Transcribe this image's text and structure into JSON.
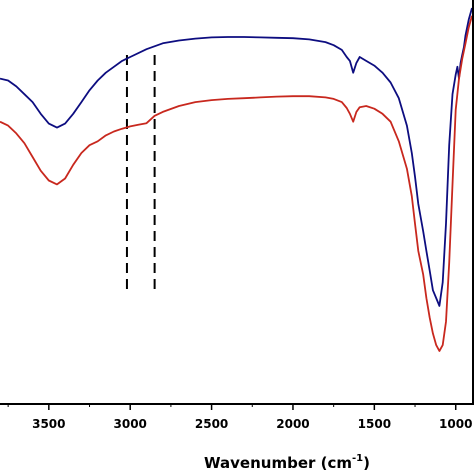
{
  "chart_data": {
    "type": "line",
    "xlabel": "Wavenumber (cm",
    "xlabel_sup": "-1",
    "xlabel_end": ")",
    "ylabel": "",
    "x_reversed": true,
    "xlim": [
      3800,
      900
    ],
    "ylim": [
      0,
      100
    ],
    "x_ticks": [
      3500,
      3000,
      2500,
      2000,
      1500,
      1000
    ],
    "x_tick_labels": [
      "3500",
      "3000",
      "2500",
      "2000",
      "1500",
      "1000"
    ],
    "grid": false,
    "legend": "none",
    "series": [
      {
        "color": "#0d0d80",
        "x": [
          3800,
          3750,
          3700,
          3650,
          3600,
          3550,
          3500,
          3450,
          3400,
          3350,
          3300,
          3250,
          3200,
          3150,
          3100,
          3050,
          3000,
          2900,
          2800,
          2700,
          2600,
          2500,
          2400,
          2300,
          2200,
          2100,
          2000,
          1900,
          1800,
          1750,
          1700,
          1670,
          1650,
          1630,
          1610,
          1590,
          1550,
          1500,
          1450,
          1400,
          1350,
          1300,
          1270,
          1250,
          1230,
          1200,
          1180,
          1160,
          1140,
          1120,
          1100,
          1080,
          1060,
          1040,
          1020,
          1000,
          990,
          980,
          970,
          960,
          950,
          940,
          920,
          900
        ],
        "y": [
          82,
          81.5,
          80,
          78,
          76,
          73,
          70.5,
          69.5,
          70.5,
          73,
          76,
          79,
          81.5,
          83.5,
          85,
          86.5,
          87.5,
          89.5,
          91,
          91.7,
          92.2,
          92.5,
          92.6,
          92.6,
          92.5,
          92.4,
          92.3,
          92,
          91.3,
          90.5,
          89.3,
          87.5,
          86.5,
          83.5,
          86,
          87.5,
          86.5,
          85.3,
          83.5,
          81,
          77,
          70,
          63,
          57,
          50,
          43,
          38,
          33,
          28,
          26,
          24,
          30,
          45,
          65,
          78,
          83,
          85,
          82,
          86,
          88,
          90,
          93,
          97,
          100
        ]
      },
      {
        "color": "#c8281e",
        "x": [
          3800,
          3750,
          3700,
          3650,
          3600,
          3550,
          3500,
          3450,
          3400,
          3350,
          3300,
          3250,
          3200,
          3150,
          3100,
          3050,
          3000,
          2950,
          2900,
          2850,
          2800,
          2700,
          2600,
          2500,
          2400,
          2300,
          2200,
          2100,
          2000,
          1900,
          1800,
          1750,
          1700,
          1670,
          1650,
          1630,
          1610,
          1590,
          1550,
          1500,
          1450,
          1400,
          1350,
          1300,
          1270,
          1250,
          1230,
          1200,
          1180,
          1160,
          1140,
          1120,
          1100,
          1080,
          1060,
          1040,
          1020,
          1000,
          980,
          960,
          940,
          920,
          900
        ],
        "y": [
          71,
          70,
          68,
          65.5,
          62,
          58.5,
          56,
          55,
          56.5,
          60,
          63,
          65,
          66,
          67.5,
          68.5,
          69.2,
          69.8,
          70.2,
          70.6,
          72.5,
          73.5,
          75,
          76,
          76.5,
          76.8,
          77,
          77.2,
          77.4,
          77.5,
          77.5,
          77.2,
          76.8,
          76,
          74.5,
          73,
          71,
          73.5,
          74.7,
          75,
          74.3,
          73,
          71,
          66,
          59,
          52,
          45,
          38,
          32,
          26,
          21,
          17,
          14,
          12.5,
          14,
          20,
          35,
          55,
          74,
          82,
          87,
          91,
          95,
          98
        ]
      }
    ],
    "annotations": [
      {
        "type": "vertical-dashed-line",
        "x": 3020
      },
      {
        "type": "vertical-dashed-line",
        "x": 2850
      }
    ]
  }
}
